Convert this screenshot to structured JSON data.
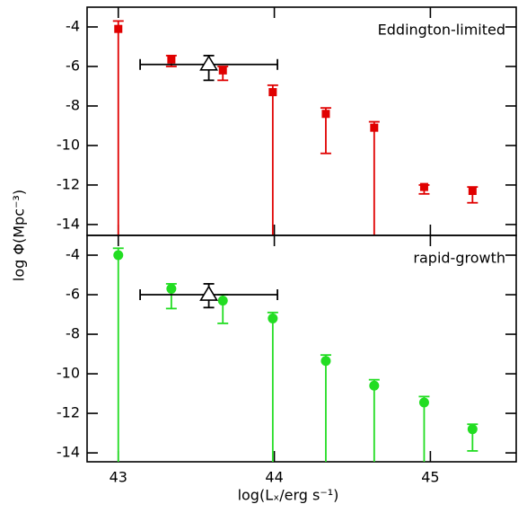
{
  "chart_data": [
    {
      "type": "scatter",
      "annotation": "Eddington-limited",
      "ylabel": "log Φ(Mpc⁻³)",
      "xlim": [
        42.8,
        45.55
      ],
      "xticks": [
        43,
        44,
        45
      ],
      "ylim": [
        -14.55,
        -3
      ],
      "yticks": [
        -4,
        -6,
        -8,
        -10,
        -12,
        -14
      ],
      "series": [
        {
          "color": "#e00000",
          "marker": "square",
          "x": [
            43.0,
            43.34,
            43.67,
            43.99,
            44.33,
            44.64,
            44.96,
            45.27
          ],
          "values": [
            -4.1,
            -5.65,
            -6.2,
            -7.3,
            -8.4,
            -9.1,
            -12.1,
            -12.3
          ],
          "upper": [
            -3.7,
            -5.45,
            -6.0,
            -6.95,
            -8.1,
            -8.8,
            -12.0,
            -12.1
          ],
          "lower": [
            null,
            -6.0,
            -6.7,
            null,
            -10.4,
            null,
            -12.45,
            -12.9
          ]
        },
        {
          "color": "#000000",
          "marker": "triangle",
          "x": [
            43.58
          ],
          "values": [
            -5.9
          ],
          "upper": [
            -5.45
          ],
          "lower": [
            -6.7
          ],
          "x_lower": [
            43.14
          ],
          "x_upper": [
            44.02
          ]
        }
      ]
    },
    {
      "type": "scatter",
      "annotation": "rapid-growth",
      "xlabel": "log(Lₓ/erg s⁻¹)",
      "xlim": [
        42.8,
        45.55
      ],
      "xticks": [
        43,
        44,
        45
      ],
      "ylim": [
        -14.45,
        -3
      ],
      "yticks": [
        -4,
        -6,
        -8,
        -10,
        -12,
        -14
      ],
      "series": [
        {
          "color": "#22dd22",
          "marker": "circle",
          "x": [
            43.0,
            43.34,
            43.67,
            43.99,
            44.33,
            44.64,
            44.96,
            45.27
          ],
          "values": [
            -4.0,
            -5.7,
            -6.3,
            -7.2,
            -9.35,
            -10.6,
            -11.45,
            -12.8
          ],
          "upper": [
            -3.65,
            -5.45,
            -6.0,
            -6.9,
            -9.05,
            -10.3,
            -11.15,
            -12.55
          ],
          "lower": [
            null,
            -6.7,
            -7.45,
            null,
            null,
            null,
            null,
            -13.9
          ]
        },
        {
          "color": "#000000",
          "marker": "triangle",
          "x": [
            43.58
          ],
          "values": [
            -6.0
          ],
          "upper": [
            -5.45
          ],
          "lower": [
            -6.65
          ],
          "x_lower": [
            43.14
          ],
          "x_upper": [
            44.02
          ]
        }
      ]
    }
  ]
}
